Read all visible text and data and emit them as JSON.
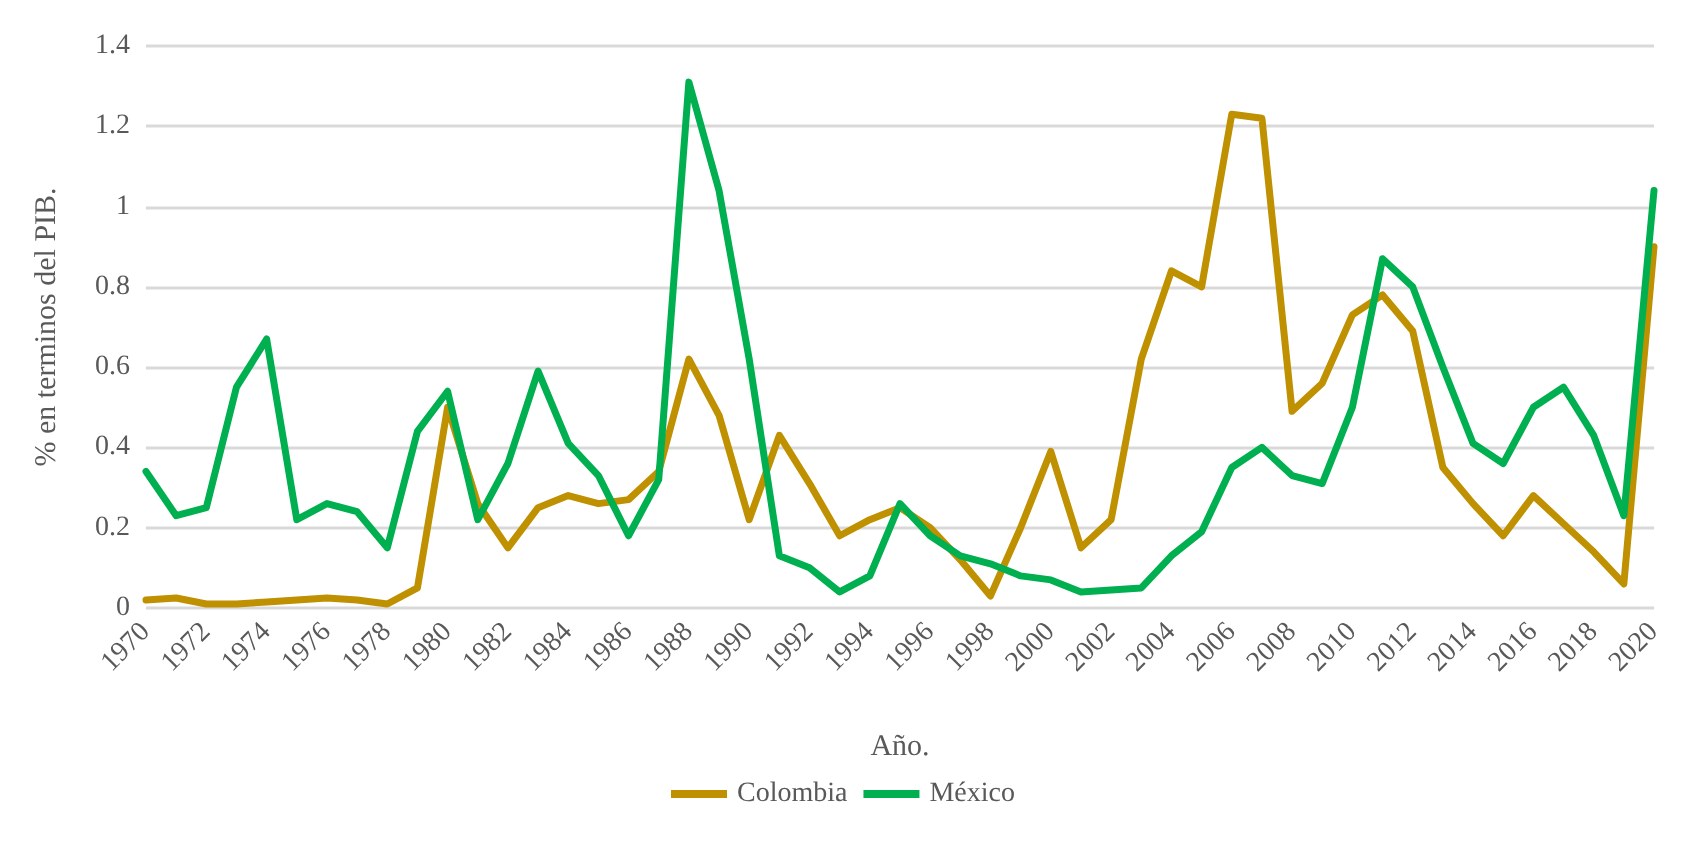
{
  "chart_data": {
    "type": "line",
    "xlabel": "Año.",
    "ylabel": "% en terminos del PIB.",
    "categories": [
      "1970",
      null,
      "1972",
      null,
      "1974",
      null,
      "1976",
      null,
      "1978",
      null,
      "1980",
      null,
      "1982",
      null,
      "1984",
      null,
      "1986",
      null,
      "1988",
      null,
      "1990",
      null,
      "1992",
      null,
      "1994",
      null,
      "1996",
      null,
      "1998",
      null,
      "2000",
      null,
      "2002",
      null,
      "2004",
      null,
      "2006",
      null,
      "2008",
      null,
      "2010",
      null,
      "2012",
      null,
      "2014",
      null,
      "2016",
      null,
      "2018",
      null,
      "2020"
    ],
    "series": [
      {
        "name": "Colombia",
        "color": "#bf9000",
        "values": [
          0.02,
          0.025,
          0.01,
          0.01,
          0.015,
          0.02,
          0.025,
          0.02,
          0.01,
          0.05,
          0.5,
          0.26,
          0.15,
          0.25,
          0.28,
          0.26,
          0.27,
          0.34,
          0.62,
          0.48,
          0.22,
          0.43,
          0.31,
          0.18,
          0.22,
          0.25,
          0.2,
          0.12,
          0.03,
          0.2,
          0.39,
          0.15,
          0.22,
          0.62,
          0.84,
          0.8,
          1.23,
          1.22,
          0.49,
          0.56,
          0.73,
          0.78,
          0.69,
          0.35,
          0.26,
          0.18,
          0.28,
          0.21,
          0.14,
          0.06,
          0.9
        ]
      },
      {
        "name": "México",
        "color": "#00b050",
        "values": [
          0.34,
          0.23,
          0.25,
          0.55,
          0.67,
          0.22,
          0.26,
          0.24,
          0.15,
          0.44,
          0.54,
          0.22,
          0.36,
          0.59,
          0.41,
          0.33,
          0.18,
          0.32,
          1.31,
          1.04,
          0.62,
          0.13,
          0.1,
          0.04,
          0.08,
          0.26,
          0.18,
          0.13,
          0.11,
          0.08,
          0.07,
          0.04,
          0.045,
          0.05,
          0.13,
          0.19,
          0.35,
          0.4,
          0.33,
          0.31,
          0.5,
          0.87,
          0.8,
          0.6,
          0.41,
          0.36,
          0.5,
          0.55,
          0.43,
          0.23,
          1.04
        ]
      }
    ],
    "ylim": [
      0,
      1.4
    ],
    "yticks": [
      0,
      0.2,
      0.4,
      0.6,
      0.8,
      1,
      1.2,
      1.4
    ],
    "grid": "y",
    "legend": "bottom",
    "marker": "none",
    "line_style": "solid"
  }
}
